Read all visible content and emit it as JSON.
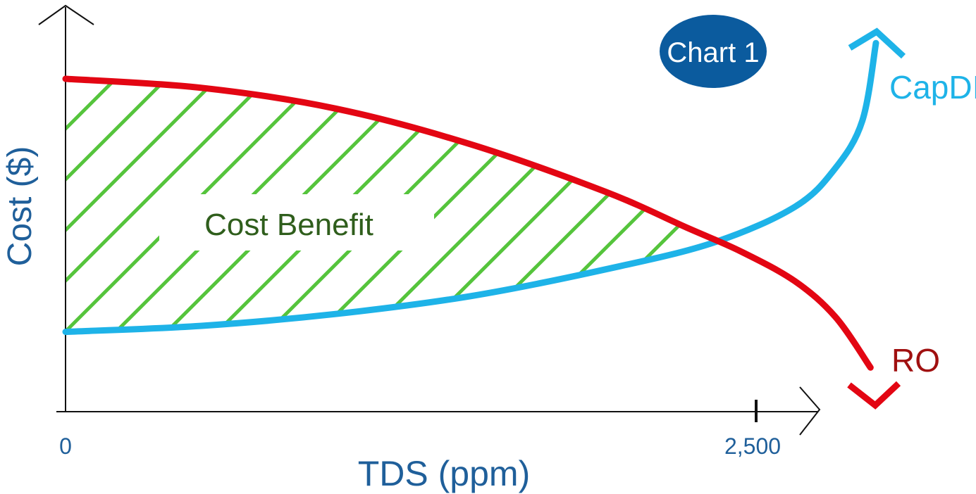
{
  "badge": {
    "text": "Chart 1",
    "color": "#0b5b9e"
  },
  "chart_data": {
    "type": "line",
    "title": "",
    "xlabel": "TDS (ppm)",
    "ylabel": "Cost ($)",
    "x_ticks": [
      "0",
      "2,500"
    ],
    "xlim": [
      0,
      3000
    ],
    "ylim": [
      0,
      100
    ],
    "grid": false,
    "series": [
      {
        "name": "RO",
        "color": "#e30613",
        "x": [
          0,
          500,
          1000,
          1500,
          2000,
          2300,
          2500,
          2700,
          2850,
          2980
        ],
        "y": [
          100,
          97,
          90,
          78,
          62,
          50,
          42,
          32,
          20,
          3
        ]
      },
      {
        "name": "CapDI",
        "color": "#1eb3e8",
        "x": [
          0,
          500,
          1000,
          1500,
          2000,
          2400,
          2700,
          2850,
          2950,
          3000
        ],
        "y": [
          15,
          17,
          21,
          27,
          36,
          45,
          57,
          70,
          86,
          112
        ]
      }
    ],
    "annotations": [
      {
        "text": "Cost Benefit",
        "color": "#2f5e1c",
        "fill_color": "#55c43c"
      }
    ],
    "axis_color": "#111111",
    "label_color": "#1f5f9a"
  }
}
